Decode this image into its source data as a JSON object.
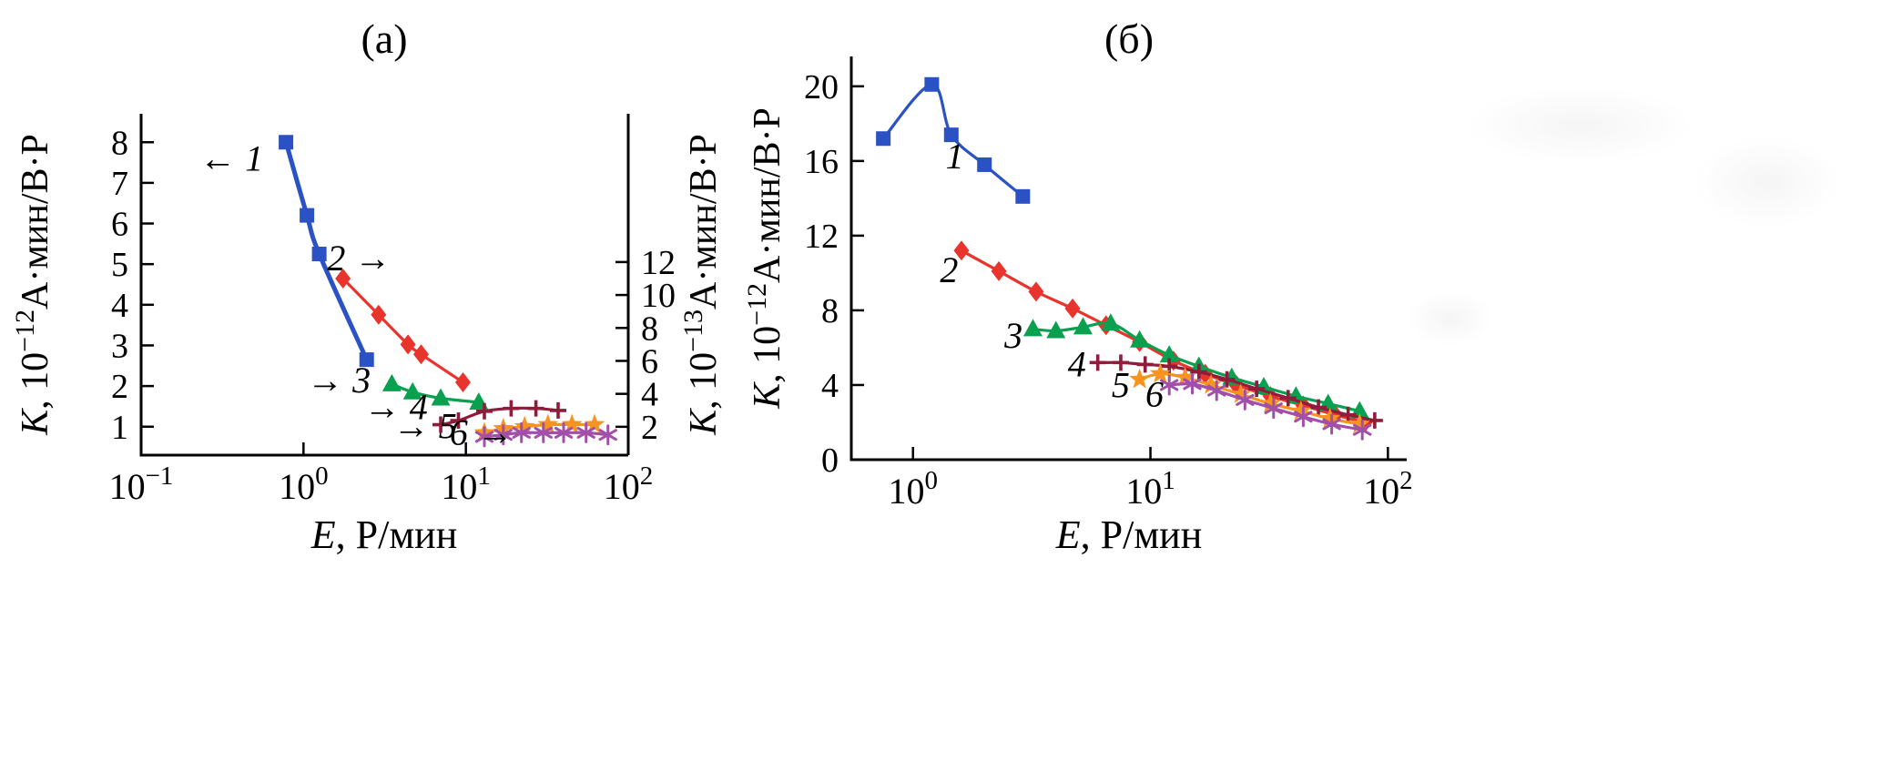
{
  "figure": {
    "background": "#ffffff",
    "text_color": "#000000"
  },
  "chart_data": [
    {
      "id": "a",
      "type": "line",
      "title": "(а)",
      "x_axis": {
        "scale": "log",
        "min": 0.1,
        "max": 100,
        "tick_values": [
          0.1,
          1,
          10,
          100
        ],
        "tick_exponents": [
          "−1",
          "0",
          "1",
          "2"
        ],
        "label_var": "E",
        "label_rest": ", Р/мин"
      },
      "y_axis_left": {
        "scale": "linear",
        "min": 0.3,
        "max": 8.7,
        "tick_values": [
          1,
          2,
          3,
          4,
          5,
          6,
          7,
          8
        ],
        "label_var": "K",
        "label_pre": ", 10",
        "label_exp": "−12",
        "label_unit": "А·мин/В·Р"
      },
      "y_axis_right": {
        "scale": "linear",
        "min": 0.28,
        "max": 21.0,
        "tick_values": [
          2,
          4,
          6,
          8,
          10,
          12
        ],
        "label_var": "K",
        "label_pre": ", 10",
        "label_exp": "−13",
        "label_unit": "А·мин/В·Р"
      },
      "series": [
        {
          "name": "1",
          "axis": "left",
          "marker": "square",
          "color": "#2a52c4",
          "x": [
            0.78,
            1.05,
            1.25,
            2.45
          ],
          "y": [
            8.0,
            6.2,
            5.25,
            2.65
          ]
        },
        {
          "name": "2",
          "axis": "right",
          "marker": "diamond",
          "color": "#e8342c",
          "x": [
            1.75,
            2.9,
            4.4,
            5.3,
            9.6
          ],
          "y": [
            11.0,
            8.8,
            7.0,
            6.4,
            4.7
          ]
        },
        {
          "name": "3",
          "axis": "left",
          "marker": "triangle",
          "color": "#0aa04f",
          "x": [
            3.5,
            4.7,
            7.0,
            12.0
          ],
          "y": [
            2.05,
            1.85,
            1.7,
            1.6
          ]
        },
        {
          "name": "4",
          "axis": "left",
          "marker": "plus",
          "color": "#8f1c3a",
          "x": [
            7.0,
            9.0,
            13,
            19,
            27,
            37
          ],
          "y": [
            1.05,
            1.15,
            1.38,
            1.45,
            1.45,
            1.4
          ]
        },
        {
          "name": "5",
          "axis": "left",
          "marker": "star",
          "color": "#f79421",
          "x": [
            13,
            17,
            23,
            32,
            45,
            62
          ],
          "y": [
            0.85,
            0.95,
            1.0,
            1.05,
            1.05,
            1.05
          ]
        },
        {
          "name": "6",
          "axis": "left",
          "marker": "asterisk",
          "color": "#a14fa8",
          "x": [
            13,
            17,
            22,
            30,
            40,
            55,
            75
          ],
          "y": [
            0.75,
            0.8,
            0.85,
            0.85,
            0.85,
            0.85,
            0.8
          ]
        }
      ],
      "annotations": [
        {
          "label": "1",
          "arrow": "←",
          "arrow_pos": "before",
          "x": 0.36,
          "y": 7.3
        },
        {
          "label": "2",
          "arrow": "→",
          "arrow_pos": "after",
          "x": 2.2,
          "y": 4.85
        },
        {
          "label": "3",
          "arrow": "→",
          "arrow_pos": "before",
          "x": 1.65,
          "y": 1.85
        },
        {
          "label": "4",
          "arrow": "→",
          "arrow_pos": "before",
          "x": 3.7,
          "y": 1.18
        },
        {
          "label": "5",
          "arrow": "→",
          "arrow_pos": "before",
          "x": 5.6,
          "y": 0.72
        },
        {
          "label": "6",
          "arrow": "→",
          "arrow_pos": "after",
          "x": 12.5,
          "y": 0.56
        }
      ]
    },
    {
      "id": "b",
      "type": "line",
      "title": "(б)",
      "x_axis": {
        "scale": "log",
        "min": 0.55,
        "max": 120,
        "tick_values": [
          1,
          10,
          100
        ],
        "tick_exponents": [
          "0",
          "1",
          "2"
        ],
        "label_var": "E",
        "label_rest": ", Р/мин"
      },
      "y_axis_left": {
        "scale": "linear",
        "min": 0,
        "max": 21.6,
        "tick_values": [
          0,
          4,
          8,
          12,
          16,
          20
        ],
        "label_var": "K",
        "label_pre": ", 10",
        "label_exp": "−12",
        "label_unit": "А·мин/В·Р"
      },
      "series": [
        {
          "name": "1",
          "axis": "left",
          "marker": "square",
          "color": "#2a52c4",
          "x": [
            0.75,
            1.2,
            1.45,
            2.0,
            2.9
          ],
          "y": [
            17.2,
            20.1,
            17.4,
            15.8,
            14.1
          ]
        },
        {
          "name": "2",
          "axis": "left",
          "marker": "diamond",
          "color": "#e8342c",
          "x": [
            1.6,
            2.3,
            3.3,
            4.7,
            6.5,
            9,
            12.5,
            17,
            23,
            32,
            44,
            60,
            80
          ],
          "y": [
            11.2,
            10.1,
            9.0,
            8.1,
            7.2,
            6.3,
            5.3,
            4.6,
            4.0,
            3.4,
            2.9,
            2.4,
            2.0
          ]
        },
        {
          "name": "3",
          "axis": "left",
          "marker": "triangle",
          "color": "#0aa04f",
          "x": [
            3.2,
            4.0,
            5.2,
            6.8,
            9,
            12,
            16,
            22,
            30,
            41,
            56,
            76
          ],
          "y": [
            7.0,
            6.9,
            7.1,
            7.3,
            6.4,
            5.6,
            5.0,
            4.4,
            3.9,
            3.4,
            3.0,
            2.6
          ]
        },
        {
          "name": "4",
          "axis": "left",
          "marker": "plus",
          "color": "#8f1c3a",
          "x": [
            6,
            7.5,
            9.5,
            12,
            16,
            21,
            28,
            38,
            51,
            68,
            88
          ],
          "y": [
            5.2,
            5.2,
            5.1,
            5.0,
            4.7,
            4.3,
            3.8,
            3.3,
            2.8,
            2.4,
            2.1
          ]
        },
        {
          "name": "5",
          "axis": "left",
          "marker": "star",
          "color": "#f79421",
          "x": [
            9,
            11,
            14,
            18,
            24,
            32,
            43,
            57,
            76
          ],
          "y": [
            4.3,
            4.6,
            4.4,
            4.0,
            3.5,
            3.0,
            2.6,
            2.2,
            1.9
          ]
        },
        {
          "name": "6",
          "axis": "left",
          "marker": "asterisk",
          "color": "#a14fa8",
          "x": [
            12,
            15,
            19,
            25,
            33,
            44,
            58,
            78
          ],
          "y": [
            4.0,
            4.05,
            3.7,
            3.2,
            2.75,
            2.3,
            1.9,
            1.6
          ]
        }
      ],
      "annotations": [
        {
          "label": "1",
          "arrow": null,
          "arrow_pos": null,
          "x": 1.5,
          "y": 15.6
        },
        {
          "label": "2",
          "arrow": null,
          "arrow_pos": null,
          "x": 1.42,
          "y": 9.5
        },
        {
          "label": "3",
          "arrow": null,
          "arrow_pos": null,
          "x": 2.65,
          "y": 6.0
        },
        {
          "label": "4",
          "arrow": null,
          "arrow_pos": null,
          "x": 4.9,
          "y": 4.45
        },
        {
          "label": "5",
          "arrow": null,
          "arrow_pos": null,
          "x": 7.5,
          "y": 3.35
        },
        {
          "label": "6",
          "arrow": null,
          "arrow_pos": null,
          "x": 10.4,
          "y": 2.85
        }
      ]
    }
  ]
}
